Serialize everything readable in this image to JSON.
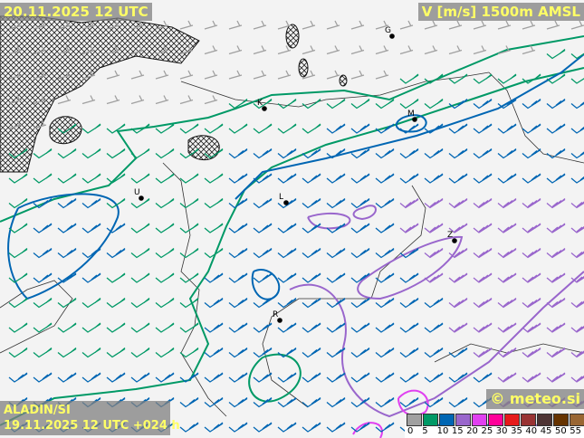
{
  "header": {
    "valid_time": "20.11.2025 12 UTC",
    "parameter": "V [m/s] 1500m AMSL"
  },
  "footer": {
    "model": "ALADIN/SI",
    "run": "19.11.2025 12 UTC +024 h",
    "copyright": "© meteo.si"
  },
  "legend": {
    "unit": "m/s",
    "ticks": [
      "0",
      "5",
      "10",
      "15",
      "20",
      "25",
      "30",
      "35",
      "40",
      "45",
      "50",
      "55"
    ],
    "colors": [
      "#a0a0a0",
      "#009966",
      "#0066b3",
      "#9966cc",
      "#e040f0",
      "#ff0099",
      "#e61a1a",
      "#993333",
      "#4d3333",
      "#663300",
      "#996633",
      "#b39966"
    ]
  },
  "map": {
    "cities": [
      {
        "label": "G"
      },
      {
        "label": "K"
      },
      {
        "label": "M"
      },
      {
        "label": "U"
      },
      {
        "label": "L"
      },
      {
        "label": "Z"
      },
      {
        "label": "R"
      }
    ],
    "barb_colors": {
      "calm": "#a0a0a0",
      "green": "#009966",
      "blue": "#0066b3",
      "purple": "#9966cc"
    }
  }
}
